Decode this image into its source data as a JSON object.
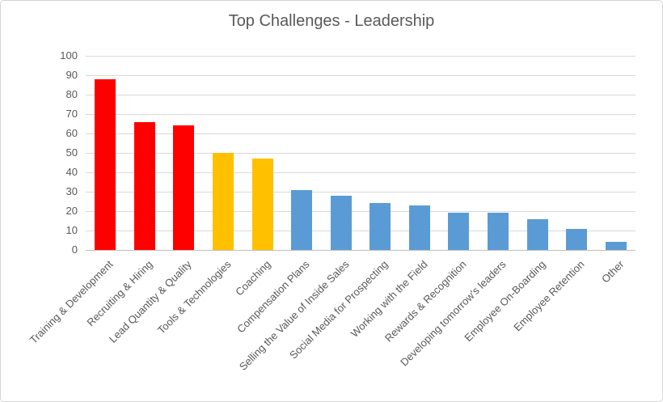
{
  "chart_data": {
    "type": "bar",
    "title": "Top Challenges - Leadership",
    "categories": [
      "Training & Development",
      "Recruiting & Hiring",
      "Lead Quantity & Quality",
      "Tools & Technologies",
      "Coaching",
      "Compensation Plans",
      "Selling the Value of Inside Sales",
      "Social Media for Prospecting",
      "Working with the Field",
      "Rewards & Recognition",
      "Developing tomorrow's leaders",
      "Employee On-Boarding",
      "Employee Retention",
      "Other"
    ],
    "values": [
      88,
      66,
      64,
      50,
      47,
      31,
      28,
      24,
      23,
      19,
      19,
      16,
      11,
      4
    ],
    "colors": [
      "#FF0000",
      "#FF0000",
      "#FF0000",
      "#FFC000",
      "#FFC000",
      "#5B9BD5",
      "#5B9BD5",
      "#5B9BD5",
      "#5B9BD5",
      "#5B9BD5",
      "#5B9BD5",
      "#5B9BD5",
      "#5B9BD5",
      "#5B9BD5"
    ],
    "xlabel": "",
    "ylabel": "",
    "ylim": [
      0,
      100
    ],
    "ytick_step": 10,
    "grid": true,
    "legend": false,
    "grid_color": "#D9D9D9",
    "axis_color": "#BFBFBF",
    "text_color": "#595959"
  }
}
